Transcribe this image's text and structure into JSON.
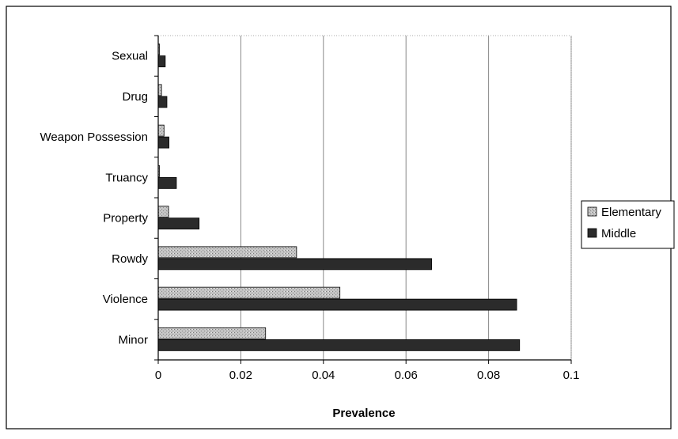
{
  "chart_data": {
    "type": "bar",
    "orientation": "horizontal",
    "categories": [
      "Minor",
      "Violence",
      "Rowdy",
      "Property",
      "Truancy",
      "Weapon Possession",
      "Drug",
      "Sexual"
    ],
    "series": [
      {
        "name": "Elementary",
        "color": "#b9b9b9",
        "pattern": "stippled-gray",
        "values": [
          0.026,
          0.044,
          0.0335,
          0.0025,
          0.0003,
          0.0014,
          0.0008,
          0.0003
        ]
      },
      {
        "name": "Middle",
        "color": "#2b2b2b",
        "pattern": "dark-gray",
        "values": [
          0.0875,
          0.0868,
          0.0662,
          0.0099,
          0.0044,
          0.0026,
          0.0021,
          0.0017
        ]
      }
    ],
    "xlabel": "Prevalence",
    "ylabel": "",
    "xlim": [
      0,
      0.1
    ],
    "xticks": [
      0,
      0.02,
      0.04,
      0.06,
      0.08,
      0.1
    ],
    "xtick_labels": [
      "0",
      "0.02",
      "0.04",
      "0.06",
      "0.08",
      "0.1"
    ],
    "grid": "vertical",
    "legend_position": "right"
  }
}
